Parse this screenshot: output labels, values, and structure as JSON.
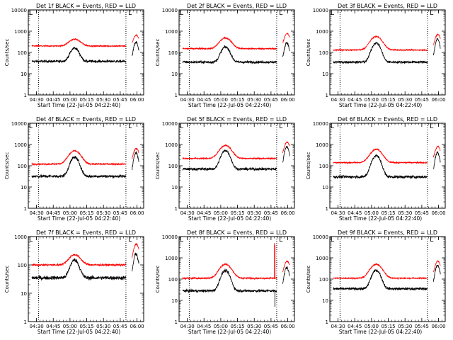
{
  "colors": {
    "events": "#000000",
    "lld": "#ff0000",
    "axis": "#000000",
    "background": "#ffffff"
  },
  "common": {
    "xlabel": "Start Time (22-Jul-05 04:22:40)",
    "ylabel": "Counts/sec",
    "ylim": [
      1,
      10000
    ],
    "yscale": "log",
    "xlim_hours": [
      4.3778,
      6.1
    ],
    "x_ticks": [
      {
        "label": "04:30",
        "hour": 4.5
      },
      {
        "label": "04:45",
        "hour": 4.75
      },
      {
        "label": "05:00",
        "hour": 5.0
      },
      {
        "label": "05:15",
        "hour": 5.25
      },
      {
        "label": "05:30",
        "hour": 5.5
      },
      {
        "label": "05:45",
        "hour": 5.75
      },
      {
        "label": "06:00",
        "hour": 6.0
      }
    ],
    "y_ticks": [
      {
        "label": "1",
        "value": 1
      },
      {
        "label": "10",
        "value": 10
      },
      {
        "label": "100",
        "value": 100
      },
      {
        "label": "1000",
        "value": 1000
      },
      {
        "label": "10000",
        "value": 10000
      }
    ],
    "markers": [
      {
        "type": "dotted-line",
        "hour": 4.53
      },
      {
        "type": "dotted-line",
        "hour": 5.835
      },
      {
        "type": "bracket",
        "label": "L",
        "hour": 5.87
      }
    ]
  },
  "chart_data": [
    {
      "type": "line",
      "title": "Det 1f BLACK = Events, RED = LLD",
      "ylim": [
        1,
        10000
      ],
      "series": [
        {
          "name": "Events",
          "color": "#000000",
          "start_hour": 4.43,
          "end_hour": 6.03,
          "base": 38,
          "peaks": [
            {
              "hour": 5.07,
              "peak": 160,
              "width": 0.055
            },
            {
              "hour": 5.985,
              "peak": 300,
              "width": 0.028
            }
          ],
          "noise": 0.12,
          "gaps": [
            [
              5.835,
              5.925
            ]
          ]
        },
        {
          "name": "LLD",
          "color": "#ff0000",
          "start_hour": 4.43,
          "end_hour": 6.03,
          "base": 200,
          "peaks": [
            {
              "hour": 5.07,
              "peak": 420,
              "width": 0.075
            },
            {
              "hour": 5.99,
              "peak": 650,
              "width": 0.035
            }
          ],
          "noise": 0.06,
          "gaps": [
            [
              5.835,
              5.925
            ]
          ]
        }
      ]
    },
    {
      "type": "line",
      "title": "Det 2f BLACK = Events, RED = LLD",
      "ylim": [
        1,
        10000
      ],
      "series": [
        {
          "name": "Events",
          "color": "#000000",
          "start_hour": 4.43,
          "end_hour": 6.03,
          "base": 35,
          "peaks": [
            {
              "hour": 5.07,
              "peak": 180,
              "width": 0.055
            },
            {
              "hour": 5.985,
              "peak": 290,
              "width": 0.028
            }
          ],
          "noise": 0.12,
          "gaps": [
            [
              5.835,
              5.925
            ]
          ]
        },
        {
          "name": "LLD",
          "color": "#ff0000",
          "start_hour": 4.43,
          "end_hour": 6.03,
          "base": 150,
          "peaks": [
            {
              "hour": 5.07,
              "peak": 480,
              "width": 0.075
            },
            {
              "hour": 5.99,
              "peak": 780,
              "width": 0.035
            }
          ],
          "noise": 0.06,
          "gaps": [
            [
              5.835,
              5.925
            ]
          ]
        }
      ]
    },
    {
      "type": "line",
      "title": "Det 3f BLACK = Events, RED = LLD",
      "ylim": [
        1,
        10000
      ],
      "series": [
        {
          "name": "Events",
          "color": "#000000",
          "start_hour": 4.43,
          "end_hour": 6.03,
          "base": 35,
          "peaks": [
            {
              "hour": 5.07,
              "peak": 280,
              "width": 0.055
            },
            {
              "hour": 5.985,
              "peak": 420,
              "width": 0.028
            }
          ],
          "noise": 0.12,
          "gaps": [
            [
              5.835,
              5.925
            ]
          ]
        },
        {
          "name": "LLD",
          "color": "#ff0000",
          "start_hour": 4.43,
          "end_hour": 6.03,
          "base": 130,
          "peaks": [
            {
              "hour": 5.07,
              "peak": 560,
              "width": 0.075
            },
            {
              "hour": 5.99,
              "peak": 700,
              "width": 0.035
            }
          ],
          "noise": 0.06,
          "gaps": [
            [
              5.835,
              5.925
            ]
          ]
        }
      ]
    },
    {
      "type": "line",
      "title": "Det 4f BLACK = Events, RED = LLD",
      "ylim": [
        1,
        10000
      ],
      "series": [
        {
          "name": "Events",
          "color": "#000000",
          "start_hour": 4.43,
          "end_hour": 6.03,
          "base": 32,
          "peaks": [
            {
              "hour": 5.07,
              "peak": 250,
              "width": 0.055
            },
            {
              "hour": 5.985,
              "peak": 400,
              "width": 0.028
            }
          ],
          "noise": 0.14,
          "gaps": [
            [
              5.835,
              5.925
            ]
          ]
        },
        {
          "name": "LLD",
          "color": "#ff0000",
          "start_hour": 4.43,
          "end_hour": 6.03,
          "base": 120,
          "peaks": [
            {
              "hour": 5.07,
              "peak": 500,
              "width": 0.075
            },
            {
              "hour": 5.99,
              "peak": 650,
              "width": 0.035
            }
          ],
          "noise": 0.07,
          "gaps": [
            [
              5.835,
              5.925
            ]
          ]
        }
      ]
    },
    {
      "type": "line",
      "title": "Det 5f BLACK = Events, RED = LLD",
      "ylim": [
        1,
        10000
      ],
      "series": [
        {
          "name": "Events",
          "color": "#000000",
          "start_hour": 4.43,
          "end_hour": 6.03,
          "base": 70,
          "peaks": [
            {
              "hour": 5.07,
              "peak": 520,
              "width": 0.055
            },
            {
              "hour": 5.985,
              "peak": 800,
              "width": 0.028
            }
          ],
          "noise": 0.12,
          "gaps": [
            [
              5.835,
              5.925
            ]
          ]
        },
        {
          "name": "LLD",
          "color": "#ff0000",
          "start_hour": 4.43,
          "end_hour": 6.03,
          "base": 220,
          "peaks": [
            {
              "hour": 5.07,
              "peak": 900,
              "width": 0.075
            },
            {
              "hour": 5.99,
              "peak": 1300,
              "width": 0.035
            }
          ],
          "noise": 0.06,
          "gaps": [
            [
              5.835,
              5.925
            ]
          ]
        }
      ]
    },
    {
      "type": "line",
      "title": "Det 6f BLACK = Events, RED = LLD",
      "ylim": [
        1,
        10000
      ],
      "series": [
        {
          "name": "Events",
          "color": "#000000",
          "start_hour": 4.43,
          "end_hour": 6.03,
          "base": 30,
          "peaks": [
            {
              "hour": 5.07,
              "peak": 300,
              "width": 0.055
            },
            {
              "hour": 5.985,
              "peak": 420,
              "width": 0.028
            }
          ],
          "noise": 0.13,
          "gaps": [
            [
              5.835,
              5.925
            ]
          ]
        },
        {
          "name": "LLD",
          "color": "#ff0000",
          "start_hour": 4.43,
          "end_hour": 6.03,
          "base": 140,
          "peaks": [
            {
              "hour": 5.07,
              "peak": 600,
              "width": 0.075
            },
            {
              "hour": 5.99,
              "peak": 800,
              "width": 0.035
            }
          ],
          "noise": 0.06,
          "gaps": [
            [
              5.835,
              5.925
            ]
          ]
        }
      ]
    },
    {
      "type": "line",
      "title": "Det 7f BLACK = Events, RED = LLD",
      "ylim": [
        1,
        1000
      ],
      "series": [
        {
          "name": "Events",
          "color": "#000000",
          "start_hour": 4.43,
          "end_hour": 6.03,
          "base": 35,
          "peaks": [
            {
              "hour": 5.07,
              "peak": 150,
              "width": 0.055
            },
            {
              "hour": 5.985,
              "peak": 250,
              "width": 0.028
            }
          ],
          "noise": 0.13,
          "gaps": [
            [
              5.835,
              5.925
            ]
          ]
        },
        {
          "name": "LLD",
          "color": "#ff0000",
          "start_hour": 4.43,
          "end_hour": 6.03,
          "base": 100,
          "peaks": [
            {
              "hour": 5.07,
              "peak": 230,
              "width": 0.075
            },
            {
              "hour": 5.99,
              "peak": 550,
              "width": 0.035
            }
          ],
          "noise": 0.07,
          "gaps": [
            [
              5.835,
              5.925
            ]
          ]
        }
      ]
    },
    {
      "type": "line",
      "title": "Det 8f BLACK = Events, RED = LLD",
      "ylim": [
        1,
        10000
      ],
      "series": [
        {
          "name": "Events",
          "color": "#000000",
          "start_hour": 4.43,
          "end_hour": 6.03,
          "base": 28,
          "peaks": [
            {
              "hour": 5.07,
              "peak": 250,
              "width": 0.055
            },
            {
              "hour": 5.985,
              "peak": 350,
              "width": 0.028
            }
          ],
          "noise": 0.13,
          "gaps": [
            [
              5.835,
              5.925
            ]
          ],
          "spikes": [
            {
              "hour": 5.808,
              "value": 5
            }
          ]
        },
        {
          "name": "LLD",
          "color": "#ff0000",
          "start_hour": 4.43,
          "end_hour": 6.03,
          "base": 110,
          "peaks": [
            {
              "hour": 5.07,
              "peak": 500,
              "width": 0.075
            },
            {
              "hour": 5.99,
              "peak": 700,
              "width": 0.035
            }
          ],
          "noise": 0.07,
          "gaps": [
            [
              5.835,
              5.925
            ]
          ],
          "spikes": [
            {
              "hour": 5.802,
              "value": 5000
            },
            {
              "hour": 5.81,
              "value": 4000
            }
          ]
        }
      ]
    },
    {
      "type": "line",
      "title": "Det 9f BLACK = Events, RED = LLD",
      "ylim": [
        1,
        10000
      ],
      "series": [
        {
          "name": "Events",
          "color": "#000000",
          "start_hour": 4.43,
          "end_hour": 6.03,
          "base": 35,
          "peaks": [
            {
              "hour": 5.07,
              "peak": 260,
              "width": 0.055
            },
            {
              "hour": 5.985,
              "peak": 450,
              "width": 0.028
            }
          ],
          "noise": 0.12,
          "gaps": [
            [
              5.835,
              5.925
            ]
          ]
        },
        {
          "name": "LLD",
          "color": "#ff0000",
          "start_hour": 4.43,
          "end_hour": 6.03,
          "base": 110,
          "peaks": [
            {
              "hour": 5.07,
              "peak": 500,
              "width": 0.075
            },
            {
              "hour": 5.99,
              "peak": 700,
              "width": 0.035
            }
          ],
          "noise": 0.06,
          "gaps": [
            [
              5.835,
              5.925
            ]
          ]
        }
      ]
    }
  ]
}
